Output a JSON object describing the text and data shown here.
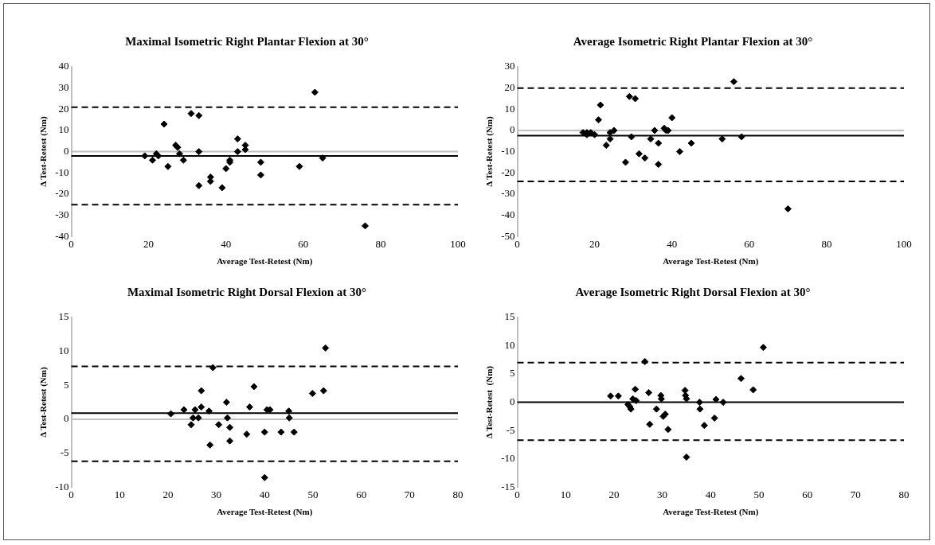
{
  "chart_data": [
    {
      "type": "scatter",
      "title": "Maximal Isometric Right Plantar Flexion at 30°",
      "xlabel": "Average Test-Retest (Nm)",
      "ylabel": "Δ Test-Retest (Nm)",
      "xlim": [
        0,
        100
      ],
      "xticks": [
        0,
        20,
        40,
        60,
        80,
        100
      ],
      "ylim": [
        -40,
        40
      ],
      "yticks": [
        -40,
        -30,
        -20,
        -10,
        0,
        10,
        20,
        30,
        40
      ],
      "marker": "diamond",
      "series": [
        {
          "color": "#000000",
          "x": [
            19,
            21,
            22,
            22.5,
            24,
            25,
            27,
            27.5,
            28,
            29,
            31,
            33,
            33,
            33,
            36,
            36,
            39,
            40,
            41,
            41,
            43,
            43,
            45,
            45,
            49,
            49,
            59,
            63,
            65,
            76
          ],
          "values": [
            -2,
            -4,
            -1,
            -2,
            13,
            -7,
            3,
            2,
            -1,
            -4,
            18,
            17,
            0,
            -16,
            -12,
            -14,
            -17,
            -8,
            -5,
            -4,
            0,
            6,
            3,
            1,
            -5,
            -11,
            -7,
            28,
            -3,
            -35
          ]
        }
      ],
      "ref_lines": [
        {
          "axis": "y",
          "value": 0,
          "color": "#bfbfbf",
          "line_style": "solid"
        },
        {
          "axis": "y",
          "value": -2,
          "color": "#000000",
          "line_style": "solid"
        },
        {
          "axis": "y",
          "value": 21,
          "color": "#000000",
          "line_style": "dashed"
        },
        {
          "axis": "y",
          "value": -25,
          "color": "#000000",
          "line_style": "dashed"
        }
      ]
    },
    {
      "type": "scatter",
      "title": "Average Isometric Right Plantar Flexion at 30°",
      "xlabel": "Average Test-Retest (Nm)",
      "ylabel": "Δ Test-Retest (Nm)",
      "xlim": [
        0,
        100
      ],
      "xticks": [
        0,
        20,
        40,
        60,
        80,
        100
      ],
      "ylim": [
        -50,
        30
      ],
      "yticks": [
        -50,
        -40,
        -30,
        -20,
        -10,
        0,
        10,
        20,
        30
      ],
      "marker": "diamond",
      "series": [
        {
          "color": "#000000",
          "x": [
            17,
            18,
            18,
            19,
            20,
            21,
            21.5,
            23,
            24,
            24,
            25,
            28,
            29,
            29.5,
            30.5,
            31.5,
            33,
            34.5,
            35.5,
            36.5,
            36.5,
            38,
            38.5,
            39,
            40,
            42,
            45,
            53,
            56,
            58,
            70
          ],
          "values": [
            -1,
            -2,
            -1,
            -1,
            -2,
            5,
            12,
            -7,
            -1,
            -4,
            0,
            -15,
            16,
            -3,
            15,
            -11,
            -13,
            -4,
            0,
            -6,
            -16,
            1,
            0,
            0,
            6,
            -10,
            -6,
            -4,
            23,
            -3,
            -37
          ]
        }
      ],
      "ref_lines": [
        {
          "axis": "y",
          "value": 0,
          "color": "#bfbfbf",
          "line_style": "solid"
        },
        {
          "axis": "y",
          "value": -2.5,
          "color": "#000000",
          "line_style": "solid"
        },
        {
          "axis": "y",
          "value": 20,
          "color": "#000000",
          "line_style": "dashed"
        },
        {
          "axis": "y",
          "value": -24,
          "color": "#000000",
          "line_style": "dashed"
        }
      ]
    },
    {
      "type": "scatter",
      "title": "Maximal Isometric Right Dorsal Flexion at 30°",
      "xlabel": "Average Test-Retest (Nm)",
      "ylabel": "Δ Test-Retest (Nm)",
      "xlim": [
        0,
        80
      ],
      "xticks": [
        0,
        10,
        20,
        30,
        40,
        50,
        60,
        70,
        80
      ],
      "ylim": [
        -10,
        15
      ],
      "yticks": [
        -10,
        -5,
        0,
        5,
        10,
        15
      ],
      "marker": "diamond",
      "series": [
        {
          "color": "#000000",
          "x": [
            20.6,
            23.3,
            24.8,
            25.2,
            25.6,
            26.3,
            26.9,
            26.9,
            28.5,
            28.7,
            29.3,
            30.5,
            32.1,
            32.3,
            32.8,
            32.8,
            36.3,
            36.9,
            37.8,
            40,
            40.5,
            41.1,
            40,
            43.4,
            45,
            45.1,
            46.1,
            49.9,
            52.2,
            52.6
          ],
          "values": [
            0.8,
            1.4,
            -0.8,
            0.2,
            1.4,
            0.2,
            4.2,
            1.8,
            1.2,
            -3.8,
            7.6,
            -0.8,
            2.5,
            0.2,
            -1.2,
            -3.2,
            -2.2,
            1.8,
            4.8,
            -1.9,
            1.4,
            1.4,
            -8.6,
            -1.9,
            1.2,
            0.2,
            -1.9,
            3.8,
            4.2,
            10.5
          ]
        }
      ],
      "ref_lines": [
        {
          "axis": "y",
          "value": 0,
          "color": "#bfbfbf",
          "line_style": "solid"
        },
        {
          "axis": "y",
          "value": 0.9,
          "color": "#000000",
          "line_style": "solid"
        },
        {
          "axis": "y",
          "value": 7.8,
          "color": "#000000",
          "line_style": "dashed"
        },
        {
          "axis": "y",
          "value": -6.2,
          "color": "#000000",
          "line_style": "dashed"
        }
      ]
    },
    {
      "type": "scatter",
      "title": "Average Isometric Right Dorsal Flexion at 30°",
      "xlabel": "Average Test-Retest (Nm)",
      "ylabel": "Δ Test-Retest  (Nm)",
      "xlim": [
        0,
        80
      ],
      "xticks": [
        0,
        10,
        20,
        30,
        40,
        50,
        60,
        70,
        80
      ],
      "ylim": [
        -15,
        15
      ],
      "yticks": [
        -15,
        -10,
        -5,
        0,
        5,
        10,
        15
      ],
      "marker": "diamond",
      "series": [
        {
          "color": "#000000",
          "x": [
            19.3,
            20.9,
            22.9,
            23.3,
            23.5,
            23.9,
            24.3,
            24.4,
            24.6,
            27.2,
            26.4,
            27.4,
            28.8,
            29.7,
            29.8,
            30.2,
            30.6,
            31.2,
            34.7,
            34.8,
            35,
            35,
            37.7,
            37.8,
            38.7,
            40.8,
            41.1,
            42.6,
            46.3,
            48.8,
            50.9
          ],
          "values": [
            1.1,
            1.1,
            -0.4,
            -0.8,
            -1.2,
            0.6,
            null,
            2.3,
            0.3,
            1.7,
            7.2,
            -3.9,
            -1.2,
            1.2,
            0.6,
            -2.5,
            -2.1,
            -4.8,
            2.1,
            1.2,
            0.6,
            -9.7,
            0,
            -1.2,
            -4.1,
            -2.8,
            0.5,
            0,
            4.2,
            2.2,
            9.7
          ]
        }
      ],
      "ref_lines": [
        {
          "axis": "y",
          "value": 0,
          "color": "#000000",
          "line_style": "solid"
        },
        {
          "axis": "y",
          "value": 7,
          "color": "#000000",
          "line_style": "dashed"
        },
        {
          "axis": "y",
          "value": -6.7,
          "color": "#000000",
          "line_style": "dashed"
        }
      ]
    }
  ]
}
